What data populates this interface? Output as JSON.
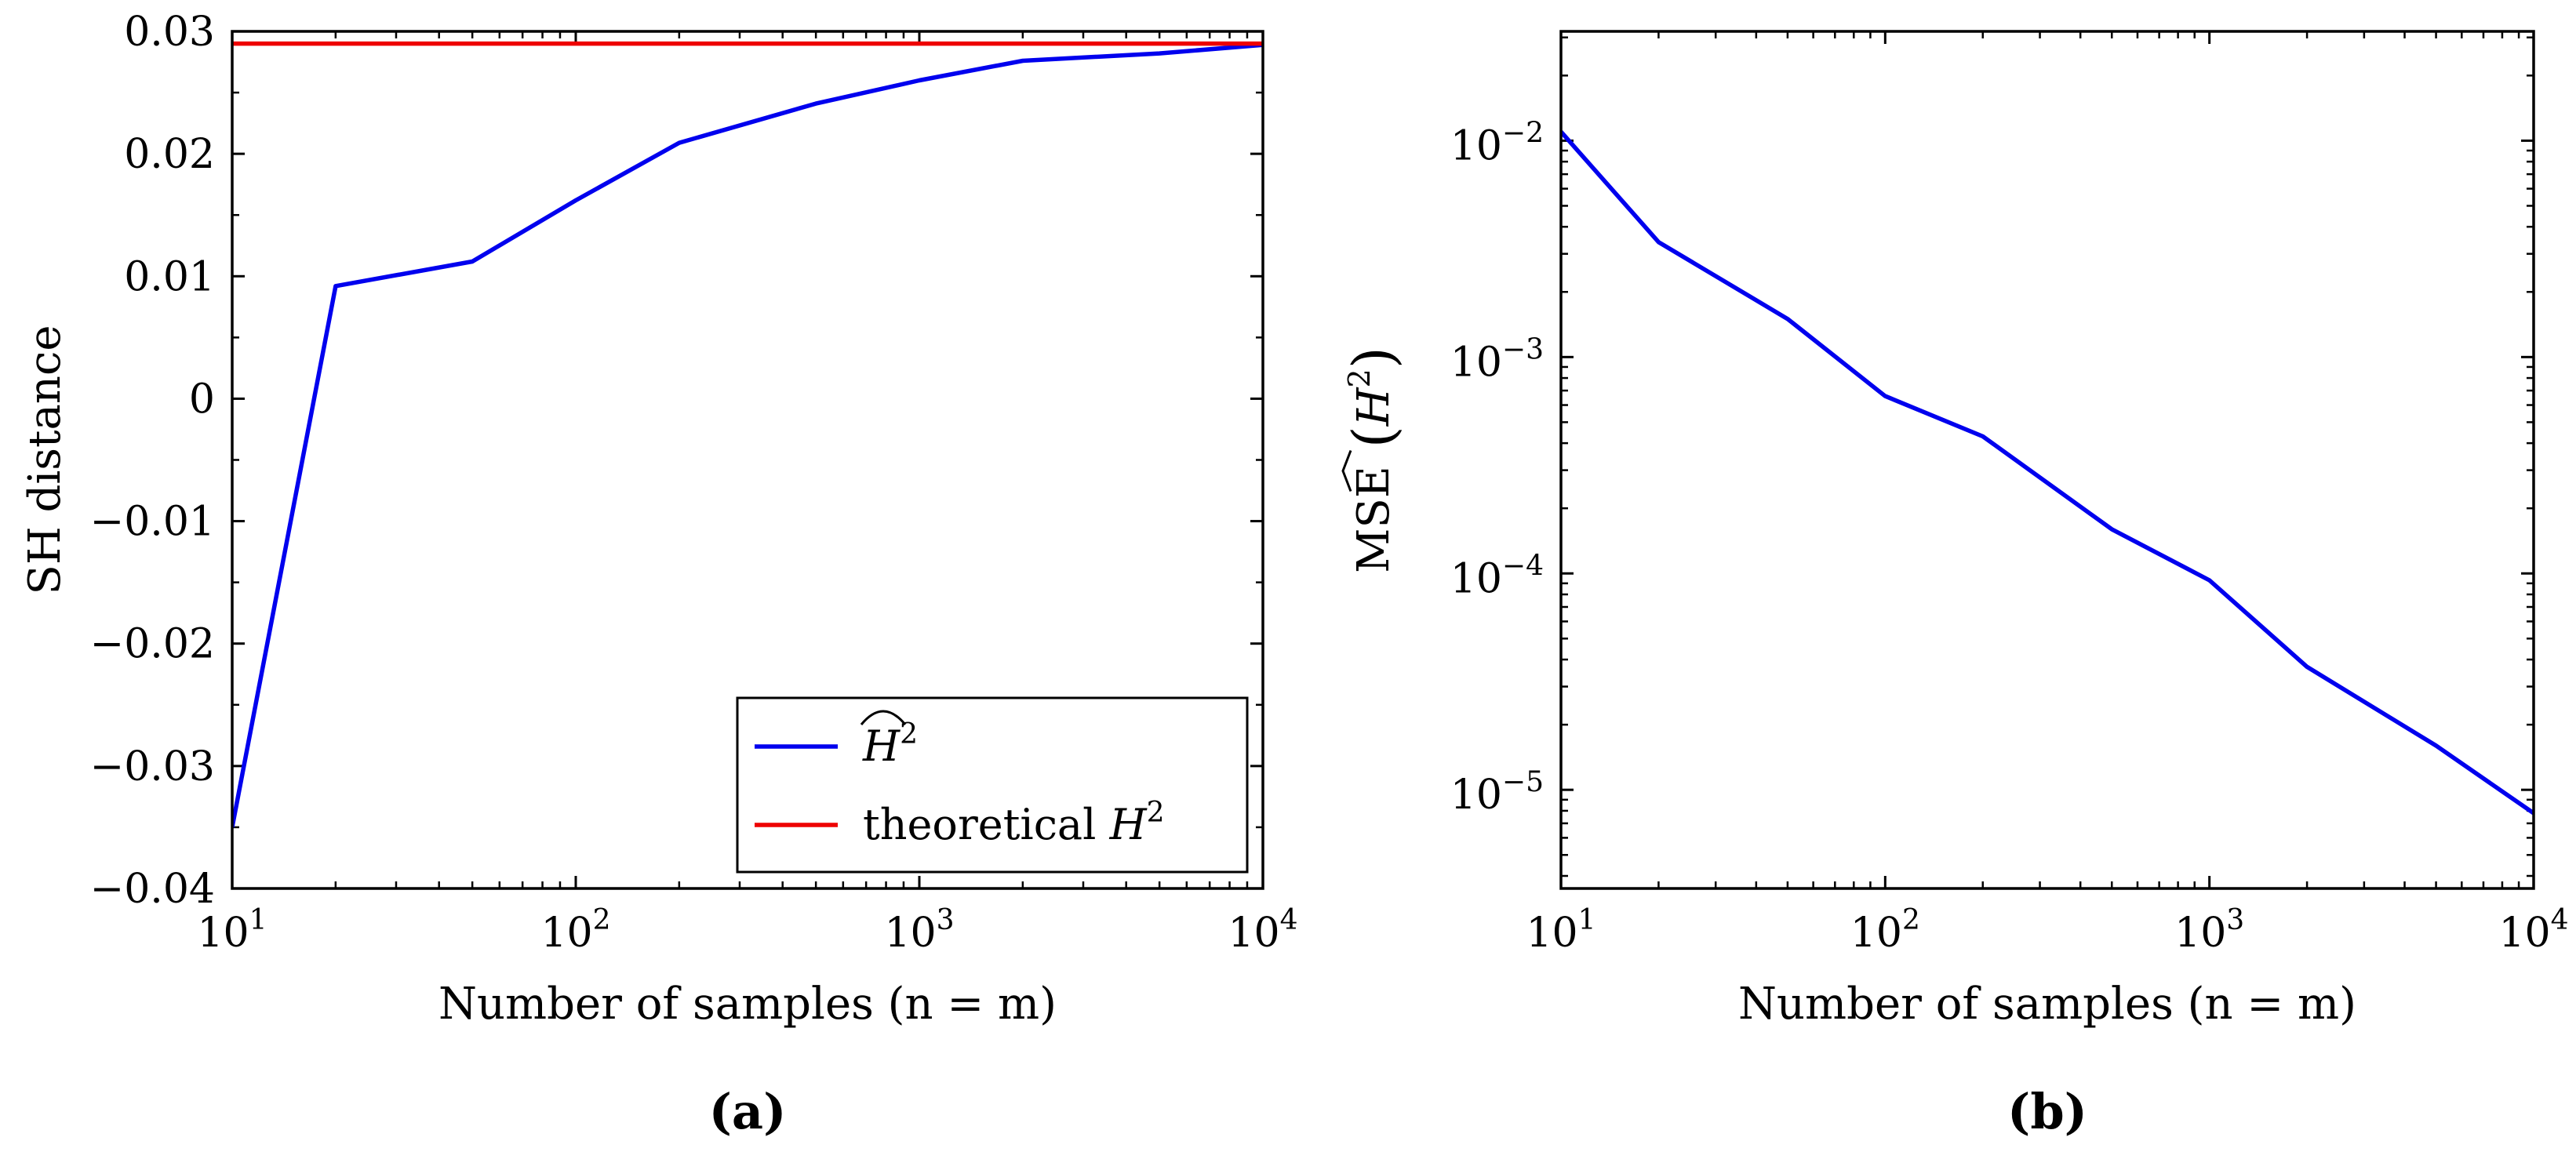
{
  "chart_data": [
    {
      "type": "line",
      "panel_label": "(a)",
      "xlabel": "Number of samples (n = m)",
      "ylabel": "SH distance",
      "xscale": "log",
      "xlim": [
        10,
        10000
      ],
      "ylim": [
        -0.04,
        0.03
      ],
      "x_ticks": [
        {
          "value": 10,
          "label": "10",
          "exp": "1"
        },
        {
          "value": 100,
          "label": "10",
          "exp": "2"
        },
        {
          "value": 1000,
          "label": "10",
          "exp": "3"
        },
        {
          "value": 10000,
          "label": "10",
          "exp": "4"
        }
      ],
      "y_ticks": [
        {
          "value": 0.03,
          "label": "0.03"
        },
        {
          "value": 0.02,
          "label": "0.02"
        },
        {
          "value": 0.01,
          "label": "0.01"
        },
        {
          "value": 0,
          "label": "0"
        },
        {
          "value": -0.01,
          "label": "−0.01"
        },
        {
          "value": -0.02,
          "label": "−0.02"
        },
        {
          "value": -0.03,
          "label": "−0.03"
        },
        {
          "value": -0.04,
          "label": "−0.04"
        }
      ],
      "series": [
        {
          "name": "Ĥ²",
          "legend_label": "H",
          "legend_sup": "2",
          "legend_hat": true,
          "color": "#0000ee",
          "x": [
            10,
            20,
            50,
            100,
            200,
            500,
            1000,
            2000,
            5000,
            10000
          ],
          "y": [
            -0.035,
            0.0092,
            0.0112,
            0.0162,
            0.0209,
            0.0241,
            0.026,
            0.0276,
            0.0282,
            0.0289
          ]
        },
        {
          "name": "theoretical H²",
          "legend_label": "theoretical H",
          "legend_sup": "2",
          "legend_hat": false,
          "color": "#ee0000",
          "x": [
            10,
            10000
          ],
          "y": [
            0.029,
            0.029
          ]
        }
      ],
      "legend_position": "lower-right"
    },
    {
      "type": "line",
      "panel_label": "(b)",
      "xlabel": "Number of samples (n = m)",
      "ylabel": "MSE (Ĥ²)",
      "ylabel_main": "MSE",
      "ylabel_sym": "H",
      "ylabel_sup": "2",
      "xscale": "log",
      "yscale": "log",
      "xlim": [
        10,
        10000
      ],
      "ylim": [
        3.5e-06,
        0.032
      ],
      "x_ticks": [
        {
          "value": 10,
          "label": "10",
          "exp": "1"
        },
        {
          "value": 100,
          "label": "10",
          "exp": "2"
        },
        {
          "value": 1000,
          "label": "10",
          "exp": "3"
        },
        {
          "value": 10000,
          "label": "10",
          "exp": "4"
        }
      ],
      "y_ticks": [
        {
          "value": 0.01,
          "label": "10",
          "exp": "−2"
        },
        {
          "value": 0.001,
          "label": "10",
          "exp": "−3"
        },
        {
          "value": 0.0001,
          "label": "10",
          "exp": "−4"
        },
        {
          "value": 1e-05,
          "label": "10",
          "exp": "−5"
        }
      ],
      "series": [
        {
          "name": "MSE(Ĥ²)",
          "color": "#0000ee",
          "x": [
            10,
            20,
            50,
            100,
            200,
            500,
            1000,
            2000,
            5000,
            10000
          ],
          "y": [
            0.011,
            0.0034,
            0.0015,
            0.00066,
            0.00043,
            0.00016,
            9.3e-05,
            3.7e-05,
            1.6e-05,
            7.8e-06
          ]
        }
      ]
    }
  ]
}
